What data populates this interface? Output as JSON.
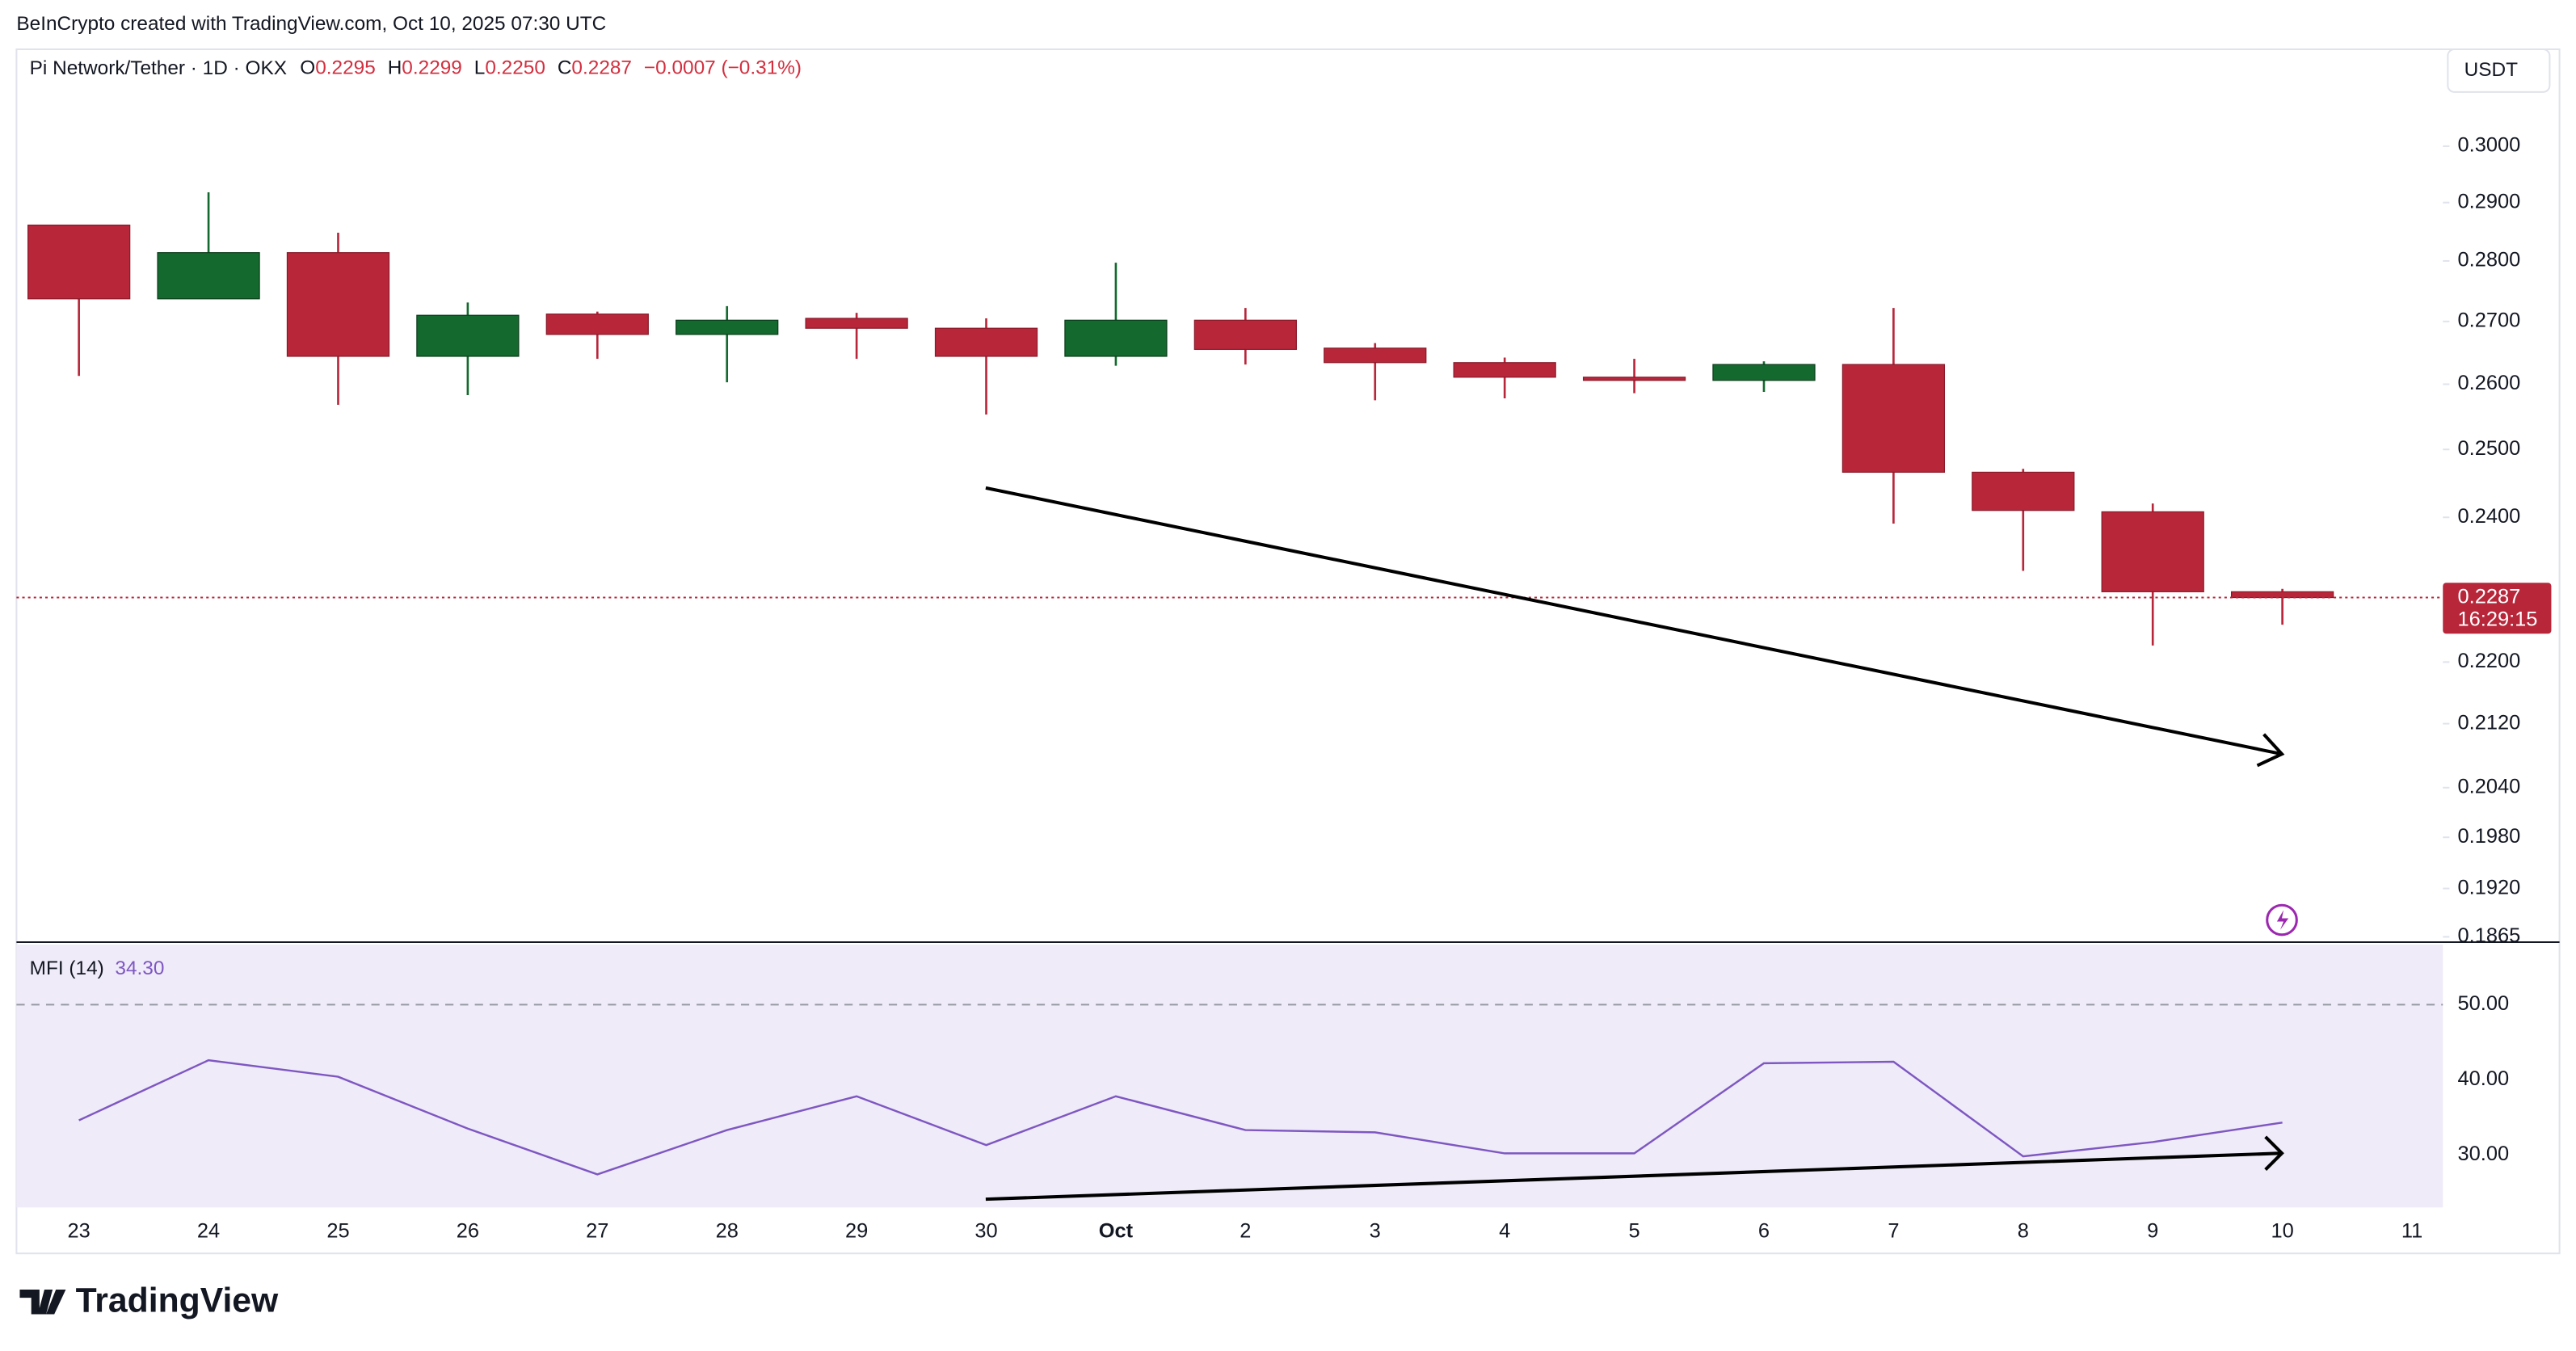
{
  "header": "BeInCrypto created with TradingView.com, Oct 10, 2025 07:30 UTC",
  "logo": "TradingView",
  "currency": "USDT",
  "chart_data": [
    {
      "type": "candlestick",
      "title": "Pi Network/Tether · 1D · OKX",
      "legend": {
        "o_label": "O",
        "o": "0.2295",
        "h_label": "H",
        "h": "0.2299",
        "l_label": "L",
        "l": "0.2250",
        "c_label": "C",
        "c": "0.2287",
        "change": "−0.0007 (−0.31%)"
      },
      "last_price_label": "0.2287",
      "countdown": "16:29:15",
      "categories": [
        "23",
        "24",
        "25",
        "26",
        "27",
        "28",
        "29",
        "30",
        "Oct",
        "2",
        "3",
        "4",
        "5",
        "6",
        "7",
        "8",
        "9",
        "10",
        "11"
      ],
      "open": [
        0.2861,
        0.2737,
        0.2814,
        0.2644,
        0.2712,
        0.2679,
        0.2705,
        0.2689,
        0.2644,
        0.2702,
        0.2657,
        0.2634,
        0.2611,
        0.2606,
        0.2631,
        0.2466,
        0.2408,
        0.2295,
        null
      ],
      "high": [
        0.2861,
        0.2918,
        0.2848,
        0.2731,
        0.2716,
        0.2725,
        0.2714,
        0.2705,
        0.2797,
        0.2722,
        0.2665,
        0.2642,
        0.264,
        0.2636,
        0.2722,
        0.2471,
        0.242,
        0.2299,
        null
      ],
      "low": [
        0.2613,
        0.2737,
        0.2568,
        0.2583,
        0.264,
        0.2603,
        0.264,
        0.2553,
        0.2629,
        0.2631,
        0.2575,
        0.2578,
        0.2586,
        0.2588,
        0.2391,
        0.2324,
        0.2222,
        0.225,
        null
      ],
      "close": [
        0.2737,
        0.2814,
        0.2644,
        0.271,
        0.2679,
        0.2702,
        0.2689,
        0.2644,
        0.2702,
        0.2655,
        0.2634,
        0.2611,
        0.2606,
        0.2631,
        0.2466,
        0.241,
        0.2295,
        0.2287,
        null
      ],
      "up_color": "#14692f",
      "down_color": "#b8263a",
      "log": true,
      "ylim": [
        0.186,
        0.318
      ],
      "yticks": [
        {
          "value": 0.3,
          "label": "0.3000"
        },
        {
          "value": 0.29,
          "label": "0.2900"
        },
        {
          "value": 0.28,
          "label": "0.2800"
        },
        {
          "value": 0.27,
          "label": "0.2700"
        },
        {
          "value": 0.26,
          "label": "0.2600"
        },
        {
          "value": 0.25,
          "label": "0.2500"
        },
        {
          "value": 0.24,
          "label": "0.2400"
        },
        {
          "value": 0.22,
          "label": "0.2200"
        },
        {
          "value": 0.212,
          "label": "0.2120"
        },
        {
          "value": 0.204,
          "label": "0.2040"
        },
        {
          "value": 0.198,
          "label": "0.1980"
        },
        {
          "value": 0.192,
          "label": "0.1920"
        },
        {
          "value": 0.1865,
          "label": "0.1865"
        }
      ]
    },
    {
      "type": "line",
      "title": "MFI (14)",
      "last_value_label": "34.30",
      "color": "#7e57c2",
      "band_color": "#efebf8",
      "values": [
        34.6,
        42.6,
        40.4,
        33.5,
        27.4,
        33.3,
        37.8,
        31.3,
        37.8,
        33.3,
        33.0,
        30.2,
        30.2,
        42.2,
        42.4,
        29.8,
        31.7,
        34.3,
        null
      ],
      "ylim": [
        23,
        58
      ],
      "yticks": [
        {
          "value": 50,
          "label": "50.00"
        },
        {
          "value": 40,
          "label": "40.00"
        },
        {
          "value": 30,
          "label": "30.00"
        }
      ]
    }
  ]
}
